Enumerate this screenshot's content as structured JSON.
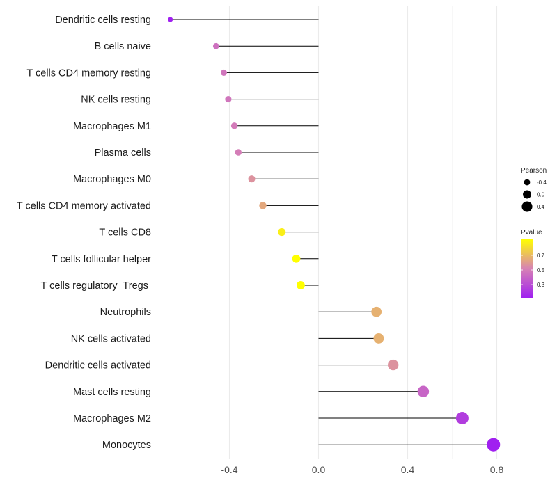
{
  "chart_data": {
    "type": "lollipop",
    "title": "",
    "xlabel": "",
    "ylabel": "",
    "xlim": [
      -0.6,
      0.82
    ],
    "x_ticks": [
      -0.4,
      0.0,
      0.4,
      0.8
    ],
    "x_tick_labels": [
      "-0.4",
      "0.0",
      "0.4",
      "0.8"
    ],
    "grid": true,
    "categories": [
      "Dendritic cells resting",
      "B cells naive",
      "T cells CD4 memory resting",
      "NK cells resting",
      "Macrophages M1",
      "Plasma cells",
      "Macrophages M0",
      "T cells CD4 memory activated",
      "T cells CD8",
      "T cells follicular helper",
      "T cells regulatory  Tregs ",
      "Neutrophils",
      "NK cells activated",
      "Dendritic cells activated",
      "Mast cells resting",
      "Macrophages M2",
      "Monocytes"
    ],
    "pearson": [
      -0.665,
      -0.46,
      -0.425,
      -0.405,
      -0.378,
      -0.36,
      -0.3,
      -0.25,
      -0.165,
      -0.1,
      -0.08,
      0.26,
      0.27,
      0.335,
      0.47,
      0.645,
      0.785
    ],
    "pvalue": [
      0.1,
      0.43,
      0.45,
      0.45,
      0.47,
      0.48,
      0.55,
      0.62,
      0.85,
      0.9,
      0.9,
      0.65,
      0.65,
      0.55,
      0.38,
      0.22,
      0.1
    ],
    "legend": {
      "position": "right",
      "size_title": "Pearson",
      "size_values": [
        -0.4,
        0.0,
        0.4
      ],
      "size_labels": [
        "-0.4",
        "0.0",
        "0.4"
      ],
      "color_title": "Pvalue",
      "color_range": [
        0.1,
        0.9
      ],
      "color_ticks": [
        0.3,
        0.5,
        0.7
      ],
      "color_labels": [
        "0.3",
        "0.5",
        "0.7"
      ],
      "color_low": "#a020f0",
      "color_high": "#ffff00"
    }
  }
}
